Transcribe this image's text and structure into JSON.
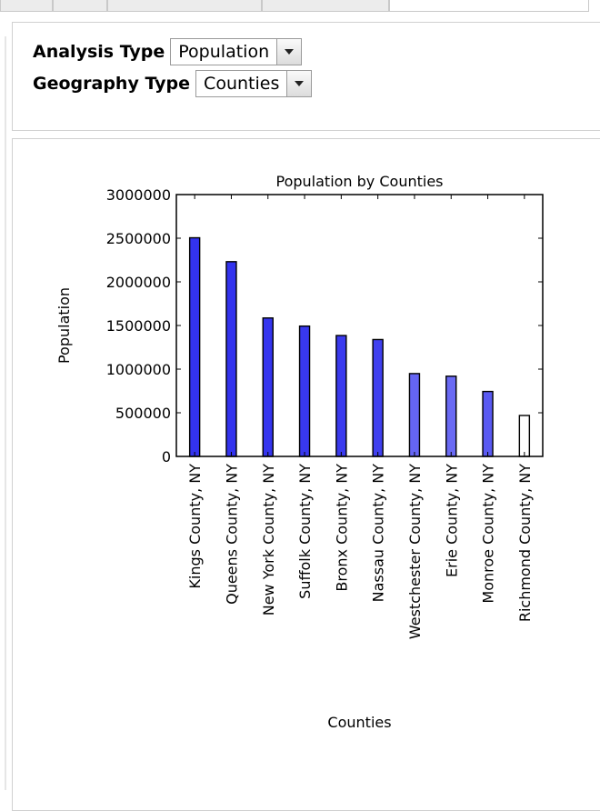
{
  "controls": {
    "analysis_type_label": "Analysis Type",
    "analysis_type_value": "Population",
    "geography_type_label": "Geography Type",
    "geography_type_value": "Counties"
  },
  "chart_data": {
    "type": "bar",
    "title": "Population by Counties",
    "xlabel": "Counties",
    "ylabel": "Population",
    "ylim": [
      0,
      3000000
    ],
    "yticks": [
      0,
      500000,
      1000000,
      1500000,
      2000000,
      2500000,
      3000000
    ],
    "ytick_labels": [
      "0",
      "500000",
      "1000000",
      "1500000",
      "2000000",
      "2500000",
      "3000000"
    ],
    "categories": [
      "Kings County, NY",
      "Queens County, NY",
      "New York County, NY",
      "Suffolk County, NY",
      "Bronx County, NY",
      "Nassau County, NY",
      "Westchester County, NY",
      "Erie County, NY",
      "Monroe County, NY",
      "Richmond County, NY"
    ],
    "values": [
      2505000,
      2231000,
      1586000,
      1493000,
      1385000,
      1339000,
      949000,
      919000,
      744000,
      469000
    ],
    "colors": [
      "#3333ee",
      "#3333ee",
      "#3535ee",
      "#3838ee",
      "#3a3aee",
      "#4040ef",
      "#6565f4",
      "#6a6af4",
      "#5a5af2",
      "#ffffff"
    ],
    "grid": false,
    "legend": "none"
  }
}
